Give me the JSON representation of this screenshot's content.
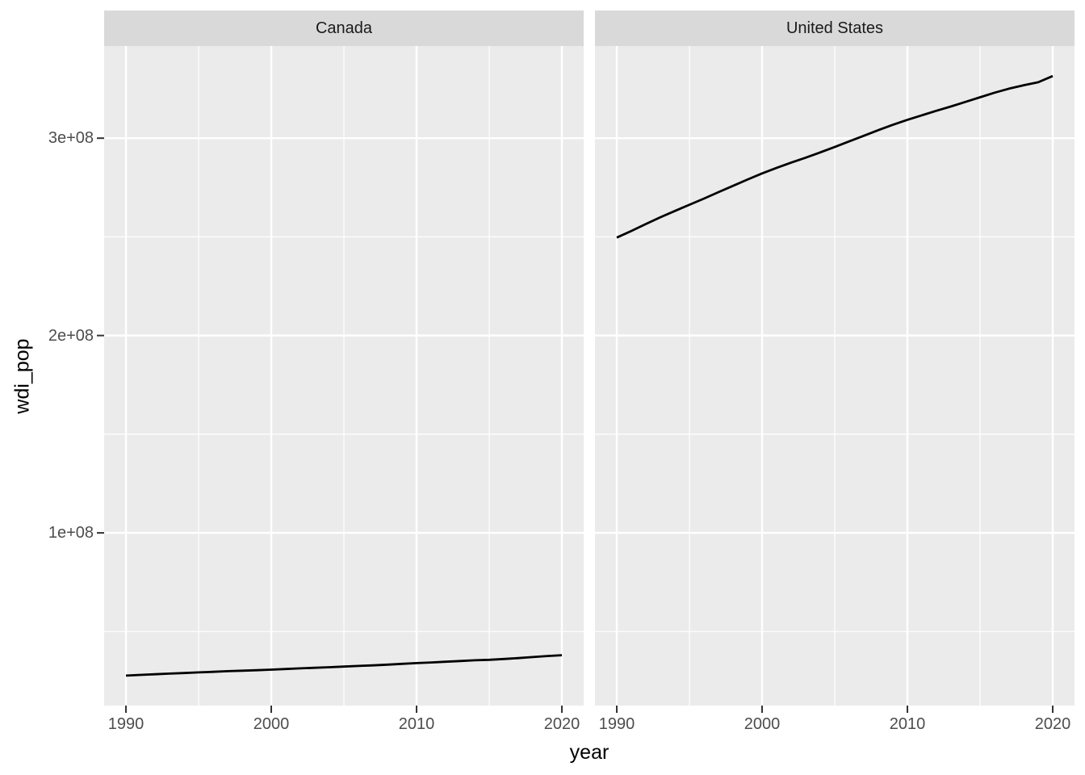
{
  "chart_data": {
    "type": "line",
    "title": "",
    "xlabel": "year",
    "ylabel": "wdi_pop",
    "legend": "none",
    "grid": "on",
    "facet_variable_values": [
      "Canada",
      "United States"
    ],
    "x_domain": [
      1988.5,
      2021.5
    ],
    "y_domain": [
      12500000,
      346700000
    ],
    "x_ticks": [
      {
        "value": 1990,
        "label": "1990"
      },
      {
        "value": 2000,
        "label": "2000"
      },
      {
        "value": 2010,
        "label": "2010"
      },
      {
        "value": 2020,
        "label": "2020"
      }
    ],
    "y_ticks": [
      {
        "value": 100000000,
        "label": "1e+08"
      },
      {
        "value": 200000000,
        "label": "2e+08"
      },
      {
        "value": 300000000,
        "label": "3e+08"
      }
    ],
    "x_minor_ticks": [
      1995,
      2005,
      2015
    ],
    "y_minor_ticks": [
      50000000,
      150000000,
      250000000,
      350000000
    ],
    "years": [
      1990,
      1991,
      1992,
      1993,
      1994,
      1995,
      1996,
      1997,
      1998,
      1999,
      2000,
      2001,
      2002,
      2003,
      2004,
      2005,
      2006,
      2007,
      2008,
      2009,
      2010,
      2011,
      2012,
      2013,
      2014,
      2015,
      2016,
      2017,
      2018,
      2019,
      2020
    ],
    "facets": [
      {
        "label": "Canada",
        "series": {
          "name": "Canada",
          "values": [
            27691138,
            28037420,
            28371264,
            28684764,
            28999006,
            29302311,
            29610218,
            29905948,
            30155173,
            30401286,
            30685730,
            31020596,
            31360079,
            31644028,
            31940655,
            32243753,
            32571174,
            32889025,
            33247118,
            33628895,
            34004889,
            34339328,
            34714222,
            35082954,
            35437435,
            35702908,
            36109487,
            36545295,
            37065084,
            37601230,
            38007166
          ]
        }
      },
      {
        "label": "United States",
        "series": {
          "name": "United States",
          "values": [
            249623000,
            252981000,
            256514000,
            259919000,
            263126000,
            266278000,
            269394000,
            272657000,
            275854000,
            279040000,
            282162411,
            284968955,
            287625193,
            290107933,
            292805298,
            295516599,
            298379912,
            301231207,
            304093966,
            306771529,
            309327143,
            311583481,
            313877662,
            316059947,
            318386329,
            320738994,
            323071755,
            325122128,
            326838199,
            328329953,
            331501080
          ]
        }
      }
    ],
    "colors": {
      "panel_background": "#EBEBEB",
      "strip_background": "#D9D9D9",
      "strip_text": "#1A1A1A",
      "gridline": "#FFFFFF",
      "line": "#000000",
      "tick_mark": "#333333",
      "tick_label": "#4D4D4D",
      "axis_title": "#000000",
      "figure_background": "#FFFFFF"
    }
  }
}
